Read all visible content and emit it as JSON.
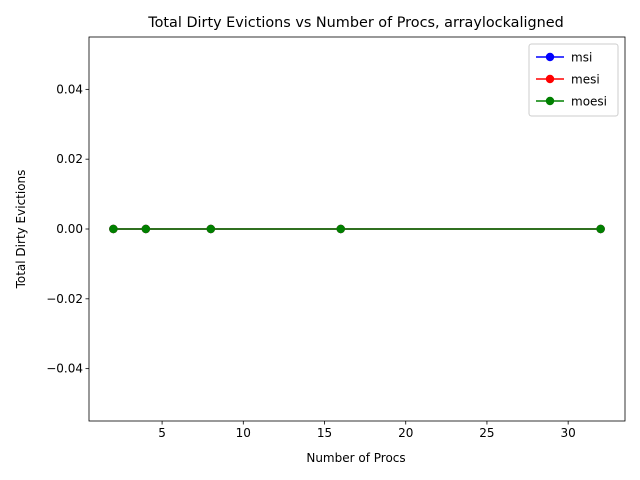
{
  "chart_data": {
    "type": "line",
    "title": "Total Dirty Evictions vs Number of Procs, arraylockaligned",
    "xlabel": "Number of Procs",
    "ylabel": "Total Dirty Evictions",
    "x": [
      2,
      4,
      8,
      16,
      32
    ],
    "xlim": [
      0.5,
      33.5
    ],
    "ylim": [
      -0.055,
      0.055
    ],
    "xticks": [
      5,
      10,
      15,
      20,
      25,
      30
    ],
    "xtick_labels": [
      "5",
      "10",
      "15",
      "20",
      "25",
      "30"
    ],
    "yticks": [
      -0.04,
      -0.02,
      0.0,
      0.02,
      0.04
    ],
    "ytick_labels": [
      "−0.04",
      "−0.02",
      "0.00",
      "0.02",
      "0.04"
    ],
    "grid": false,
    "legend_position": "top-right",
    "series": [
      {
        "name": "msi",
        "color": "#0000ff",
        "marker": "circle",
        "values": [
          0,
          0,
          0,
          0,
          0
        ]
      },
      {
        "name": "mesi",
        "color": "#ff0000",
        "marker": "circle",
        "values": [
          0,
          0,
          0,
          0,
          0
        ]
      },
      {
        "name": "moesi",
        "color": "#008000",
        "marker": "circle",
        "values": [
          0,
          0,
          0,
          0,
          0
        ]
      }
    ]
  }
}
